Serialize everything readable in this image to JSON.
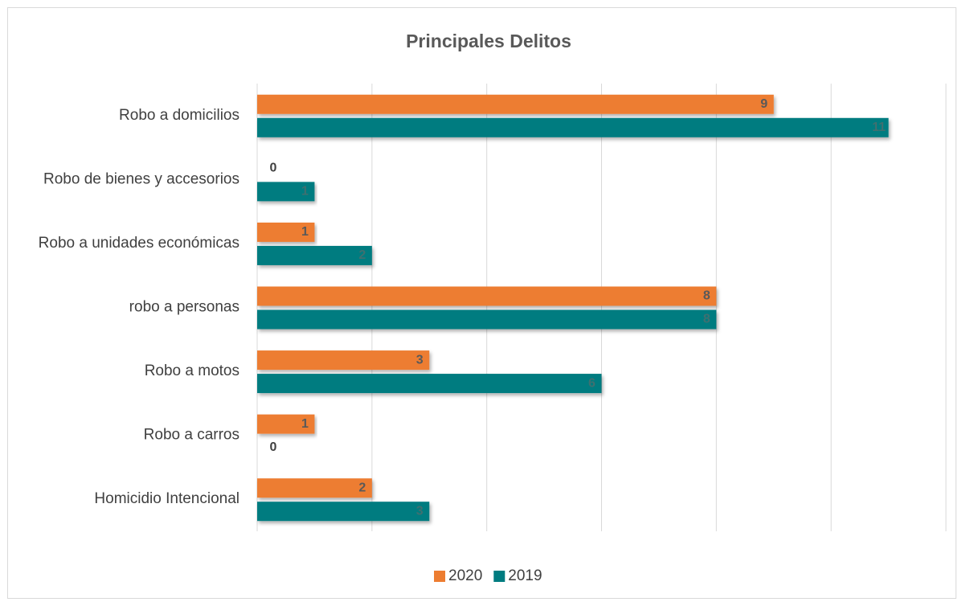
{
  "chart_data": {
    "type": "barh",
    "title": "Principales Delitos",
    "categories": [
      "Robo a domicilios",
      "Robo de bienes y accesorios",
      "Robo a unidades económicas",
      "robo a personas",
      "Robo a motos",
      "Robo a carros",
      "Homicidio Intencional"
    ],
    "series": [
      {
        "name": "2020",
        "color": "#ed7d31",
        "values": [
          9,
          0,
          1,
          8,
          3,
          1,
          2
        ]
      },
      {
        "name": "2019",
        "color": "#007c80",
        "values": [
          11,
          1,
          2,
          8,
          6,
          0,
          3
        ]
      }
    ],
    "xlim": [
      0,
      12
    ],
    "xticks": [
      0,
      2,
      4,
      6,
      8,
      10,
      12
    ],
    "grid": true,
    "legend": "bottom"
  }
}
